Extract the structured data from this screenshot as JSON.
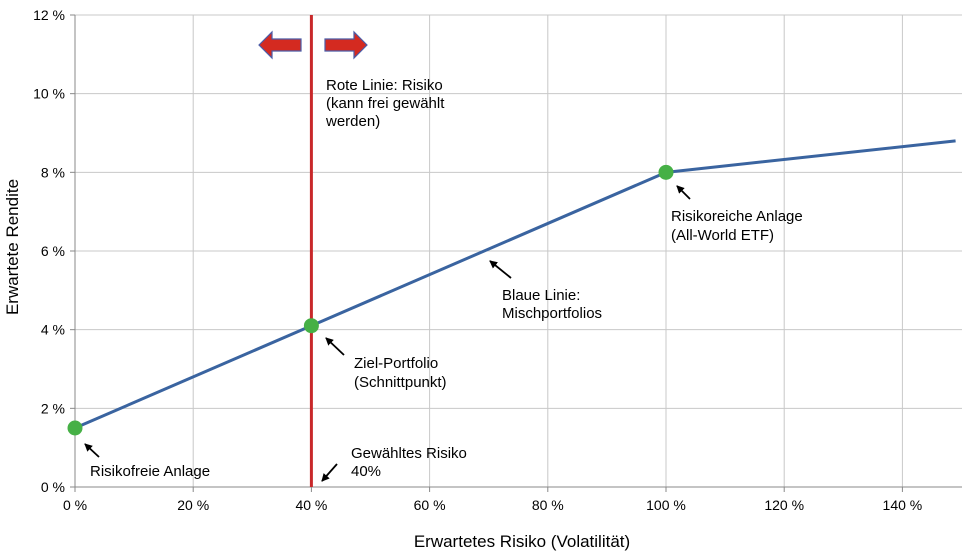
{
  "chart_data": {
    "type": "line",
    "title": "",
    "xlabel": "Erwartetes Risiko (Volatilität)",
    "ylabel": "Erwartete Rendite",
    "xlim": [
      0,
      148
    ],
    "ylim": [
      0,
      12
    ],
    "x_ticks": [
      0,
      20,
      40,
      60,
      80,
      100,
      120,
      140
    ],
    "x_tick_labels": [
      "0 %",
      "20 %",
      "40 %",
      "60 %",
      "80 %",
      "100 %",
      "120 %",
      "140 %"
    ],
    "y_ticks": [
      0,
      2,
      4,
      6,
      8,
      10,
      12
    ],
    "y_tick_labels": [
      "0 %",
      "2 %",
      "4 %",
      "6 %",
      "8 %",
      "10 %",
      "12 %"
    ],
    "grid": true,
    "colors": {
      "blue_line": "#3a64a0",
      "red_line": "#c8282a",
      "points": "#46b046",
      "grid": "#c8c8c8",
      "arrow_fill": "#d42a20",
      "arrow_stroke": "#4a5ca8"
    },
    "series": [
      {
        "name": "Blaue Linie: Mischportfolios",
        "x": [
          0,
          40,
          100,
          149
        ],
        "y": [
          1.5,
          4.1,
          8.0,
          8.8
        ]
      }
    ],
    "vertical_line": {
      "name": "Rote Linie: Risiko",
      "x": 40
    },
    "points": [
      {
        "name": "Risikofreie Anlage",
        "x": 0,
        "y": 1.5
      },
      {
        "name": "Ziel-Portfolio",
        "x": 40,
        "y": 4.1
      },
      {
        "name": "Risikoreiche Anlage",
        "x": 100,
        "y": 8.0
      }
    ],
    "annotations": {
      "red_line": [
        "Rote Linie: Risiko",
        "(kann frei gewählt",
        "werden)"
      ],
      "risky": [
        "Risikoreiche Anlage",
        "(All-World ETF)"
      ],
      "blue_line": [
        "Blaue Linie:",
        "Mischportfolios"
      ],
      "target": [
        "Ziel-Portfolio",
        "(Schnittpunkt)"
      ],
      "chosen_risk": [
        "Gewähltes Risiko",
        "40%"
      ],
      "risk_free": [
        "Risikofreie Anlage"
      ]
    }
  }
}
